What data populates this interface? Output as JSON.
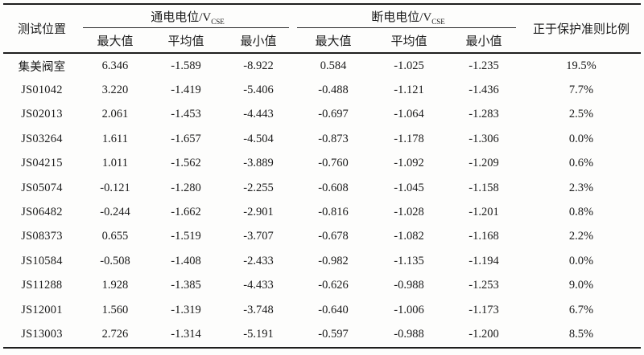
{
  "table": {
    "position_header": "测试位置",
    "ratio_header": "正于保护准则比例",
    "on_group": {
      "label": "通电电位/V",
      "sub": "CSE"
    },
    "off_group": {
      "label": "断电电位/V",
      "sub": "CSE"
    },
    "subheaders": [
      "最大值",
      "平均值",
      "最小值",
      "最大值",
      "平均值",
      "最小值"
    ],
    "rows": [
      {
        "position": "集美阀室",
        "values": [
          "6.346",
          "-1.589",
          "-8.922",
          "0.584",
          "-1.025",
          "-1.235",
          "19.5%"
        ]
      },
      {
        "position": "JS01042",
        "values": [
          "3.220",
          "-1.419",
          "-5.406",
          "-0.488",
          "-1.121",
          "-1.436",
          "7.7%"
        ]
      },
      {
        "position": "JS02013",
        "values": [
          "2.061",
          "-1.453",
          "-4.443",
          "-0.697",
          "-1.064",
          "-1.283",
          "2.5%"
        ]
      },
      {
        "position": "JS03264",
        "values": [
          "1.611",
          "-1.657",
          "-4.504",
          "-0.873",
          "-1.178",
          "-1.306",
          "0.0%"
        ]
      },
      {
        "position": "JS04215",
        "values": [
          "1.011",
          "-1.562",
          "-3.889",
          "-0.760",
          "-1.092",
          "-1.209",
          "0.6%"
        ]
      },
      {
        "position": "JS05074",
        "values": [
          "-0.121",
          "-1.280",
          "-2.255",
          "-0.608",
          "-1.045",
          "-1.158",
          "2.3%"
        ]
      },
      {
        "position": "JS06482",
        "values": [
          "-0.244",
          "-1.662",
          "-2.901",
          "-0.816",
          "-1.028",
          "-1.201",
          "0.8%"
        ]
      },
      {
        "position": "JS08373",
        "values": [
          "0.655",
          "-1.519",
          "-3.707",
          "-0.678",
          "-1.082",
          "-1.168",
          "2.2%"
        ]
      },
      {
        "position": "JS10584",
        "values": [
          "-0.508",
          "-1.408",
          "-2.433",
          "-0.982",
          "-1.135",
          "-1.194",
          "0.0%"
        ]
      },
      {
        "position": "JS11288",
        "values": [
          "1.928",
          "-1.385",
          "-4.433",
          "-0.626",
          "-0.988",
          "-1.253",
          "9.0%"
        ]
      },
      {
        "position": "JS12001",
        "values": [
          "1.560",
          "-1.319",
          "-3.748",
          "-0.640",
          "-1.006",
          "-1.173",
          "6.7%"
        ]
      },
      {
        "position": "JS13003",
        "values": [
          "2.726",
          "-1.314",
          "-5.191",
          "-0.597",
          "-0.988",
          "-1.200",
          "8.5%"
        ]
      }
    ]
  }
}
